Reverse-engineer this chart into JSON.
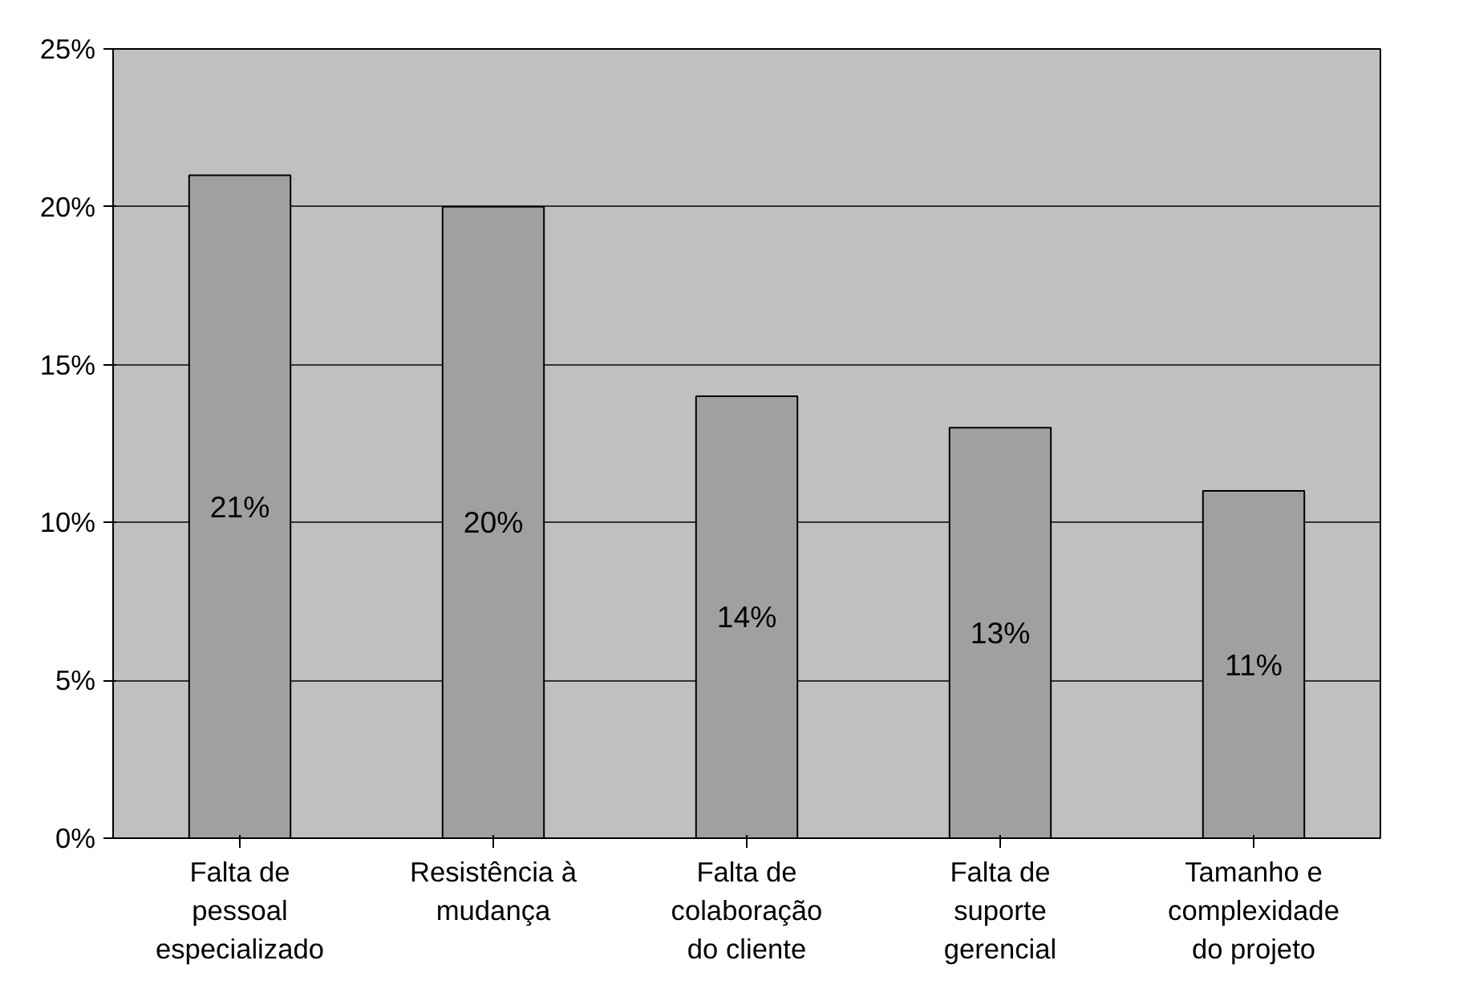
{
  "chart_data": {
    "type": "bar",
    "categories": [
      "Falta de\npessoal\nespecializado",
      "Resistência à\nmudança",
      "Falta de\ncolaboração\ndo cliente",
      "Falta de\nsuporte\ngerencial",
      "Tamanho e\ncomplexidade\ndo projeto"
    ],
    "values": [
      21,
      20,
      14,
      13,
      11
    ],
    "value_labels": [
      "21%",
      "20%",
      "14%",
      "13%",
      "11%"
    ],
    "color": "#a0a0a0",
    "ylim": [
      0,
      25
    ],
    "yticks": [
      {
        "value": 0,
        "label": "0%"
      },
      {
        "value": 5,
        "label": "5%"
      },
      {
        "value": 10,
        "label": "10%"
      },
      {
        "value": 15,
        "label": "15%"
      },
      {
        "value": 20,
        "label": "20%"
      },
      {
        "value": 25,
        "label": "25%"
      }
    ],
    "grid": "y"
  }
}
